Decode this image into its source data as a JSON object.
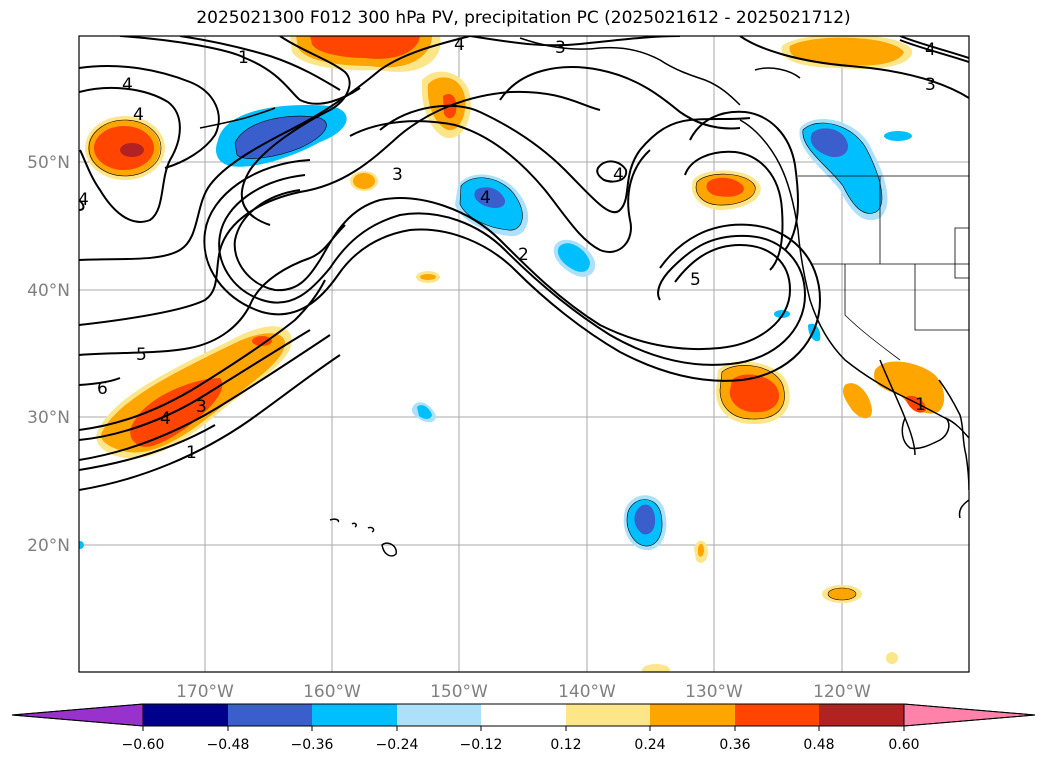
{
  "title": "2025021300 F012 300 hPa PV, precipitation PC (2025021612 - 2025021712)",
  "lat_labels": [
    "50°N",
    "40°N",
    "30°N",
    "20°N"
  ],
  "lon_labels": [
    "170°W",
    "160°W",
    "150°W",
    "140°W",
    "130°W",
    "120°W"
  ],
  "colorbar": {
    "ticks": [
      "−0.60",
      "−0.48",
      "−0.36",
      "−0.24",
      "−0.12",
      "0.12",
      "0.24",
      "0.36",
      "0.48",
      "0.60"
    ],
    "colors": [
      "#9932CC",
      "#00008B",
      "#3A5FCD",
      "#00BFFF",
      "#ADE0FB",
      "#FFFFFF",
      "#FDE68A",
      "#FFA500",
      "#FF4500",
      "#B22222",
      "#FF82AB"
    ]
  },
  "contour_labels": [
    "1",
    "4",
    "4",
    "4",
    "3",
    "3",
    "4",
    "3",
    "4",
    "2",
    "5",
    "5",
    "6",
    "4",
    "3",
    "1",
    "4",
    "1",
    "4"
  ],
  "colors": {
    "contour": "#000000",
    "grid": "#aaaaaa",
    "coast": "#000000"
  }
}
